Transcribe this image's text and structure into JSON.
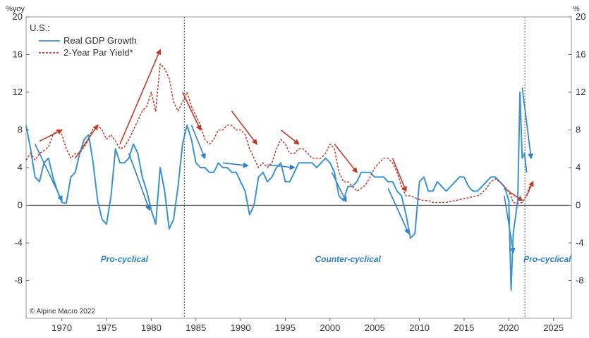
{
  "chart_data": {
    "type": "line",
    "units_left": "%yoy",
    "units_right": "%",
    "legend_title": "U.S.:",
    "credit": "© Alpine Macro 2022",
    "xlim": [
      1966,
      2027
    ],
    "ylim": [
      -12,
      20
    ],
    "grid": false,
    "legend_position": "top-left",
    "x_ticks": [
      1970,
      1975,
      1980,
      1985,
      1990,
      1995,
      2000,
      2005,
      2010,
      2015,
      2020,
      2025
    ],
    "y_ticks": [
      20,
      16,
      12,
      8,
      4,
      0,
      -4,
      -8
    ],
    "series": [
      {
        "name": "Real GDP Growth",
        "color": "#3a93cf",
        "style": "solid",
        "x": [
          1966.0,
          1966.5,
          1967.0,
          1967.5,
          1968.0,
          1968.5,
          1969.0,
          1969.5,
          1970.0,
          1970.5,
          1971.0,
          1971.5,
          1972.0,
          1972.5,
          1973.0,
          1973.5,
          1974.0,
          1974.5,
          1975.0,
          1975.5,
          1976.0,
          1976.5,
          1977.0,
          1977.5,
          1978.0,
          1978.5,
          1979.0,
          1979.5,
          1980.0,
          1980.5,
          1981.0,
          1981.5,
          1982.0,
          1982.5,
          1983.0,
          1983.5,
          1984.0,
          1984.5,
          1985.0,
          1985.5,
          1986.0,
          1986.5,
          1987.0,
          1987.5,
          1988.0,
          1988.5,
          1989.0,
          1989.5,
          1990.0,
          1990.5,
          1991.0,
          1991.5,
          1992.0,
          1992.5,
          1993.0,
          1993.5,
          1994.0,
          1994.5,
          1995.0,
          1995.5,
          1996.0,
          1996.5,
          1997.0,
          1997.5,
          1998.0,
          1998.5,
          1999.0,
          1999.5,
          2000.0,
          2000.5,
          2001.0,
          2001.5,
          2002.0,
          2002.5,
          2003.0,
          2003.5,
          2004.0,
          2004.5,
          2005.0,
          2005.5,
          2006.0,
          2006.5,
          2007.0,
          2007.5,
          2008.0,
          2008.5,
          2009.0,
          2009.5,
          2010.0,
          2010.5,
          2011.0,
          2011.5,
          2012.0,
          2012.5,
          2013.0,
          2013.5,
          2014.0,
          2014.5,
          2015.0,
          2015.5,
          2016.0,
          2016.5,
          2017.0,
          2017.5,
          2018.0,
          2018.5,
          2019.0,
          2019.5,
          2020.0,
          2020.25,
          2020.5,
          2021.0,
          2021.25,
          2021.5,
          2021.75,
          2022.0
        ],
        "values": [
          8.5,
          6.0,
          3.0,
          2.5,
          4.5,
          5.0,
          3.0,
          1.5,
          0.3,
          0.2,
          3.0,
          3.5,
          5.5,
          7.0,
          7.5,
          4.5,
          0.5,
          -1.5,
          -2.0,
          1.0,
          6.0,
          4.5,
          4.5,
          5.0,
          6.5,
          5.5,
          3.0,
          1.5,
          -0.5,
          -2.0,
          4.0,
          1.5,
          -2.5,
          -1.5,
          2.0,
          6.5,
          8.5,
          7.0,
          4.5,
          4.0,
          4.0,
          3.5,
          3.5,
          4.5,
          4.0,
          4.0,
          3.5,
          3.5,
          2.5,
          1.5,
          -1.0,
          0.0,
          3.0,
          3.5,
          2.5,
          3.0,
          4.0,
          4.5,
          2.5,
          2.5,
          3.5,
          4.5,
          4.5,
          4.5,
          4.5,
          4.0,
          4.5,
          5.0,
          4.5,
          3.5,
          1.0,
          0.5,
          2.0,
          2.0,
          2.5,
          3.5,
          3.5,
          3.5,
          3.0,
          3.0,
          3.0,
          2.5,
          2.5,
          1.5,
          1.0,
          -1.0,
          -3.5,
          -3.0,
          2.5,
          3.0,
          1.5,
          1.5,
          2.5,
          2.0,
          1.5,
          2.0,
          2.5,
          3.0,
          3.0,
          2.0,
          1.5,
          1.5,
          2.0,
          2.5,
          3.0,
          3.0,
          2.5,
          2.0,
          0.5,
          -9.0,
          -3.0,
          0.5,
          12.0,
          5.0,
          5.5,
          3.5
        ]
      },
      {
        "name": "2-Year Par Yield*",
        "color": "#c0392b",
        "style": "dashed",
        "x": [
          1966.0,
          1966.5,
          1967.0,
          1967.5,
          1968.0,
          1968.5,
          1969.0,
          1969.5,
          1970.0,
          1970.5,
          1971.0,
          1971.5,
          1972.0,
          1972.5,
          1973.0,
          1973.5,
          1974.0,
          1974.5,
          1975.0,
          1975.5,
          1976.0,
          1976.5,
          1977.0,
          1977.5,
          1978.0,
          1978.5,
          1979.0,
          1979.5,
          1980.0,
          1980.5,
          1981.0,
          1981.5,
          1982.0,
          1982.5,
          1983.0,
          1983.5,
          1984.0,
          1984.5,
          1985.0,
          1985.5,
          1986.0,
          1986.5,
          1987.0,
          1987.5,
          1988.0,
          1988.5,
          1989.0,
          1989.5,
          1990.0,
          1990.5,
          1991.0,
          1991.5,
          1992.0,
          1992.5,
          1993.0,
          1993.5,
          1994.0,
          1994.5,
          1995.0,
          1995.5,
          1996.0,
          1996.5,
          1997.0,
          1997.5,
          1998.0,
          1998.5,
          1999.0,
          1999.5,
          2000.0,
          2000.5,
          2001.0,
          2001.5,
          2002.0,
          2002.5,
          2003.0,
          2003.5,
          2004.0,
          2004.5,
          2005.0,
          2005.5,
          2006.0,
          2006.5,
          2007.0,
          2007.5,
          2008.0,
          2008.5,
          2009.0,
          2009.5,
          2010.0,
          2010.5,
          2011.0,
          2011.5,
          2012.0,
          2012.5,
          2013.0,
          2013.5,
          2014.0,
          2014.5,
          2015.0,
          2015.5,
          2016.0,
          2016.5,
          2017.0,
          2017.5,
          2018.0,
          2018.5,
          2019.0,
          2019.5,
          2020.0,
          2020.5,
          2021.0,
          2021.5,
          2022.0,
          2022.5
        ],
        "values": [
          4.8,
          5.5,
          4.8,
          5.5,
          5.8,
          6.2,
          7.5,
          8.0,
          7.5,
          6.0,
          5.0,
          5.5,
          5.5,
          6.2,
          7.0,
          8.2,
          8.5,
          8.0,
          7.0,
          7.5,
          6.8,
          6.0,
          6.2,
          7.0,
          8.0,
          9.0,
          10.0,
          10.5,
          12.0,
          10.0,
          15.0,
          14.5,
          13.5,
          11.0,
          10.0,
          11.0,
          12.0,
          10.5,
          9.5,
          8.5,
          7.0,
          6.5,
          7.0,
          8.0,
          8.0,
          8.5,
          8.5,
          8.0,
          8.0,
          7.5,
          6.0,
          5.0,
          4.0,
          4.5,
          4.0,
          4.5,
          6.0,
          7.0,
          6.5,
          5.5,
          5.5,
          6.0,
          6.0,
          5.5,
          5.0,
          5.0,
          5.0,
          5.5,
          6.5,
          6.0,
          3.5,
          2.5,
          2.5,
          2.0,
          1.5,
          1.8,
          2.2,
          3.0,
          4.0,
          4.5,
          5.0,
          5.0,
          4.5,
          3.5,
          2.0,
          1.0,
          1.0,
          0.8,
          0.6,
          0.5,
          0.5,
          0.3,
          0.3,
          0.3,
          0.3,
          0.4,
          0.5,
          0.6,
          0.7,
          0.8,
          0.9,
          1.0,
          1.3,
          1.8,
          2.5,
          2.8,
          2.5,
          2.0,
          1.5,
          0.3,
          0.2,
          0.3,
          1.0,
          2.5
        ]
      }
    ],
    "annotations": [
      {
        "text": "Pro-cyclical",
        "x": 1977,
        "y": -6
      },
      {
        "text": "Counter-cyclical",
        "x": 2002,
        "y": -6
      },
      {
        "text": "Pro-cyclical",
        "x": 2024.3,
        "y": -6
      }
    ],
    "vertical_lines": [
      1983.7,
      2021.8
    ],
    "trend_arrows": [
      {
        "color": "#2e7fc4",
        "from": [
          1967,
          6.5
        ],
        "to": [
          1970,
          0.5
        ]
      },
      {
        "color": "#2e7fc4",
        "from": [
          1977.5,
          5.5
        ],
        "to": [
          1979.8,
          -0.5
        ]
      },
      {
        "color": "#2e7fc4",
        "from": [
          1984.5,
          8.5
        ],
        "to": [
          1986,
          5.0
        ]
      },
      {
        "color": "#2e7fc4",
        "from": [
          1988,
          4.5
        ],
        "to": [
          1990.8,
          4.2
        ]
      },
      {
        "color": "#2e7fc4",
        "from": [
          1993,
          4.3
        ],
        "to": [
          1996,
          4.0
        ]
      },
      {
        "color": "#2e7fc4",
        "from": [
          2000.2,
          3.5
        ],
        "to": [
          2001.8,
          0.4
        ]
      },
      {
        "color": "#2e7fc4",
        "from": [
          2006.5,
          1.8
        ],
        "to": [
          2008.8,
          -3.0
        ]
      },
      {
        "color": "#2e7fc4",
        "from": [
          2019.5,
          1.0
        ],
        "to": [
          2020.5,
          -5.0
        ]
      },
      {
        "color": "#2e7fc4",
        "from": [
          2021.5,
          12.5
        ],
        "to": [
          2022.5,
          5.0
        ]
      },
      {
        "color": "#c0392b",
        "from": [
          1967.5,
          6.8
        ],
        "to": [
          1970,
          8.0
        ]
      },
      {
        "color": "#c0392b",
        "from": [
          1971.5,
          5.0
        ],
        "to": [
          1974,
          8.5
        ]
      },
      {
        "color": "#c0392b",
        "from": [
          1976.5,
          6.5
        ],
        "to": [
          1981,
          16.5
        ]
      },
      {
        "color": "#c0392b",
        "from": [
          1983.5,
          12.0
        ],
        "to": [
          1985.5,
          8.0
        ]
      },
      {
        "color": "#c0392b",
        "from": [
          1989,
          10.0
        ],
        "to": [
          1991.8,
          6.5
        ]
      },
      {
        "color": "#c0392b",
        "from": [
          1994.5,
          8.0
        ],
        "to": [
          1996.5,
          6.5
        ]
      },
      {
        "color": "#c0392b",
        "from": [
          2000.5,
          6.5
        ],
        "to": [
          2003,
          3.5
        ]
      },
      {
        "color": "#c0392b",
        "from": [
          2007,
          5.0
        ],
        "to": [
          2008.5,
          1.5
        ]
      },
      {
        "color": "#c0392b",
        "from": [
          2019.5,
          1.8
        ],
        "to": [
          2021.5,
          0.5
        ]
      },
      {
        "color": "#c0392b",
        "from": [
          2022,
          1.0
        ],
        "to": [
          2022.7,
          2.5
        ]
      }
    ]
  }
}
